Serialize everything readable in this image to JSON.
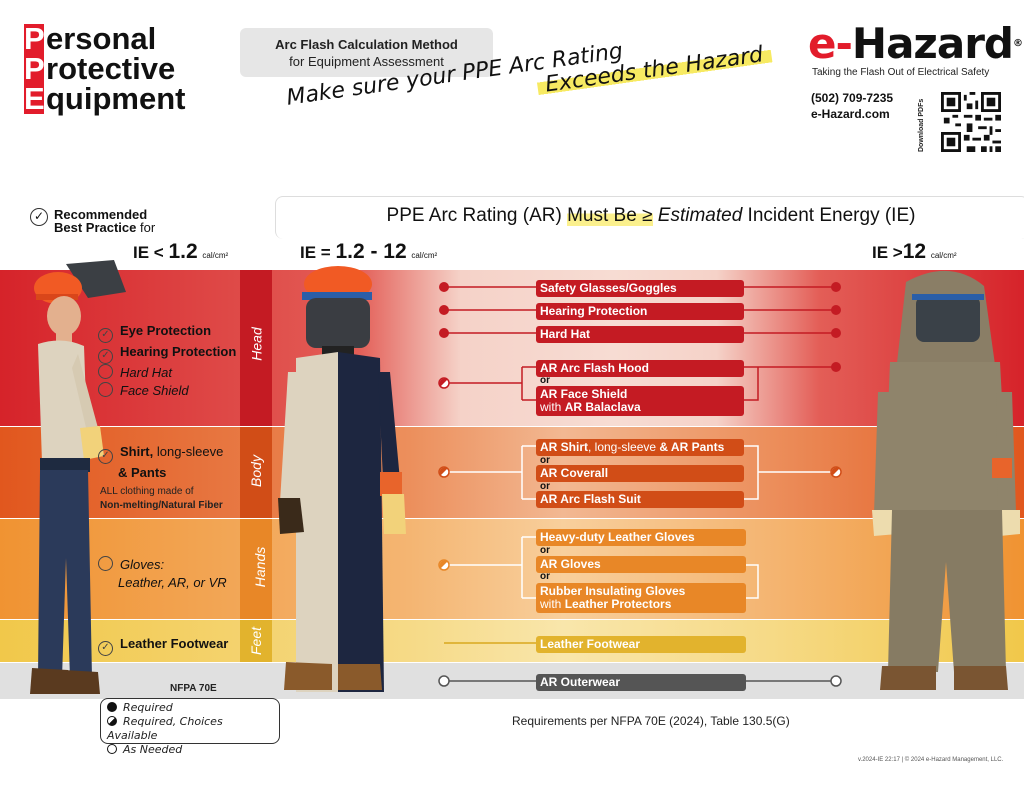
{
  "title": {
    "lines": [
      [
        "P",
        "ersonal"
      ],
      [
        "P",
        "rotective"
      ],
      [
        "E",
        "quipment"
      ]
    ]
  },
  "method": {
    "line1": "Arc Flash Calculation Method",
    "line2": "for Equipment Assessment"
  },
  "tagline": {
    "line1": "Make sure your PPE Arc Rating",
    "line2": "Exceeds the Hazard"
  },
  "brand": {
    "name_red": "e-",
    "name_dark": "Hazard",
    "reg": "®",
    "sub": "Taking the Flash Out of Electrical Safety",
    "phone": "(502) 709-7235",
    "web": "e-Hazard.com",
    "qr_label": "Download PDFs"
  },
  "recommended": {
    "line1": "Recommended",
    "line2_bold": "Best Practice",
    "line2_rest": " for"
  },
  "headline": {
    "pre": "PPE Arc Rating (AR) ",
    "hl": "Must Be ≥",
    "ital": " Estimated",
    "post": " Incident Energy (IE)"
  },
  "ie_levels": {
    "low": {
      "prefix": "IE < ",
      "value": "1.2",
      "unit": "cal/cm²"
    },
    "mid": {
      "prefix": "IE = ",
      "value": "1.2 - 12",
      "unit": "cal/cm²"
    },
    "high": {
      "prefix": "IE >",
      "value": "12",
      "unit": "cal/cm²"
    }
  },
  "bands": {
    "head": "Head",
    "body": "Body",
    "hands": "Hands",
    "feet": "Feet"
  },
  "left_checklist": {
    "eye": "Eye Protection",
    "hearing": "Hearing Protection",
    "hardhat": "Hard Hat",
    "faceshield": "Face Shield",
    "shirt1": "Shirt,",
    "shirt1_rest": " long-sleeve",
    "shirt2": "& Pants",
    "all_cloth1": "ALL clothing made of",
    "all_cloth2": "Non-melting/Natural Fiber",
    "gloves1": "Gloves:",
    "gloves2": "Leather, AR, or VR",
    "footwear": "Leather Footwear"
  },
  "ppe_items": {
    "glasses": "Safety Glasses/Goggles",
    "hearing": "Hearing Protection",
    "hardhat": "Hard Hat",
    "hood": "AR Arc Flash Hood",
    "or": "or",
    "faceshield1": "AR Face Shield",
    "faceshield2_pre": "with ",
    "faceshield2": "AR Balaclava",
    "shirt_a": "AR Shirt",
    "shirt_b": ", long-sleeve ",
    "shirt_c": "& AR Pants",
    "coverall": "AR Coverall",
    "suit": "AR Arc Flash Suit",
    "gloves_leather": "Heavy-duty Leather Gloves",
    "gloves_ar": "AR Gloves",
    "gloves_rubber1": "Rubber Insulating Gloves",
    "gloves_rubber2_pre": "with ",
    "gloves_rubber2": "Leather Protectors",
    "footwear": "Leather Footwear",
    "outerwear": "AR Outerwear"
  },
  "legend": {
    "title": "NFPA 70E",
    "required": "Required",
    "choices": "Required, Choices Available",
    "needed": "As Needed"
  },
  "requirements": "Requirements per NFPA 70E (2024), Table 130.5(G)",
  "footer": "v.2024-IE 22:17 | © 2024 e-Hazard Management, LLC.",
  "colors": {
    "red": "#e21c2b",
    "head": "#d6232a",
    "body": "#d14d17",
    "hands": "#e88727",
    "feet": "#e2b32d",
    "outer": "#555555"
  }
}
